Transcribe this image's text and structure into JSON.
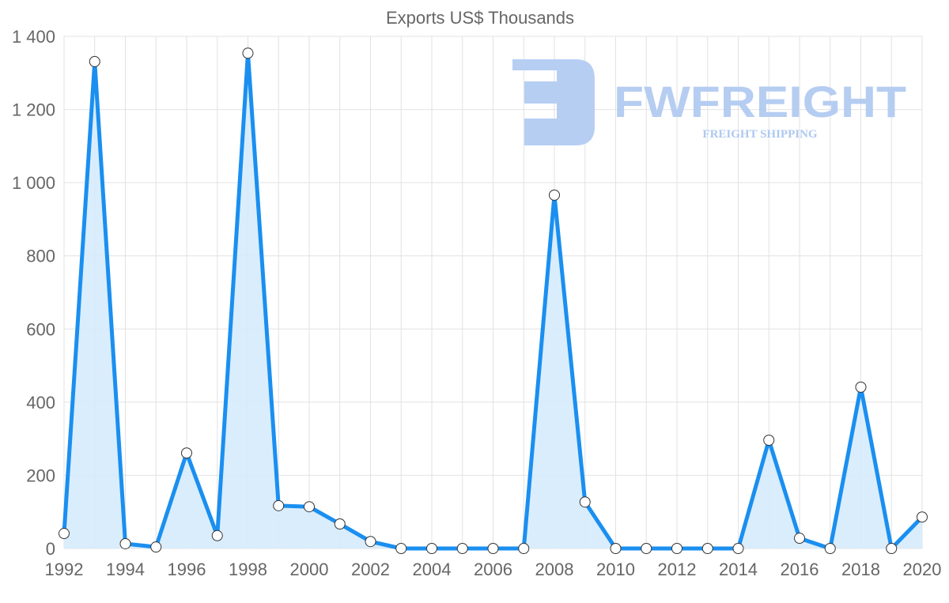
{
  "chart_data": {
    "type": "line",
    "title": "Exports US$ Thousands",
    "xlabel": "",
    "ylabel": "",
    "x": [
      1992,
      1993,
      1994,
      1995,
      1996,
      1997,
      1998,
      1999,
      2000,
      2001,
      2002,
      2003,
      2004,
      2005,
      2006,
      2007,
      2008,
      2009,
      2010,
      2011,
      2012,
      2013,
      2014,
      2015,
      2016,
      2017,
      2018,
      2019,
      2020
    ],
    "series": [
      {
        "name": "Exports US$ Thousands",
        "values": [
          41,
          1331,
          13,
          4,
          261,
          35,
          1354,
          117,
          114,
          67,
          19,
          0,
          0,
          0,
          0,
          0,
          966,
          127,
          0,
          0,
          0,
          0,
          0,
          296,
          28,
          0,
          441,
          0,
          86
        ]
      }
    ],
    "xlim": [
      1992,
      2020
    ],
    "ylim": [
      0,
      1400
    ],
    "yticks": [
      0,
      200,
      400,
      600,
      800,
      1000,
      1200,
      1400
    ],
    "ytick_labels": [
      "0",
      "200",
      "400",
      "600",
      "800",
      "1 000",
      "1 200",
      "1 400"
    ],
    "xticks": [
      1992,
      1994,
      1996,
      1998,
      2000,
      2002,
      2004,
      2006,
      2008,
      2010,
      2012,
      2014,
      2016,
      2018,
      2020
    ],
    "grid": true,
    "legend": "none",
    "colors": {
      "line": "#1a8ff0",
      "fill": "#d6ebfc",
      "grid": "#e2e2e2",
      "text": "#666666",
      "watermark": "#aac6f0"
    }
  },
  "watermark": {
    "brand": "FWFREIGHT",
    "tagline": "FREIGHT SHIPPING"
  }
}
